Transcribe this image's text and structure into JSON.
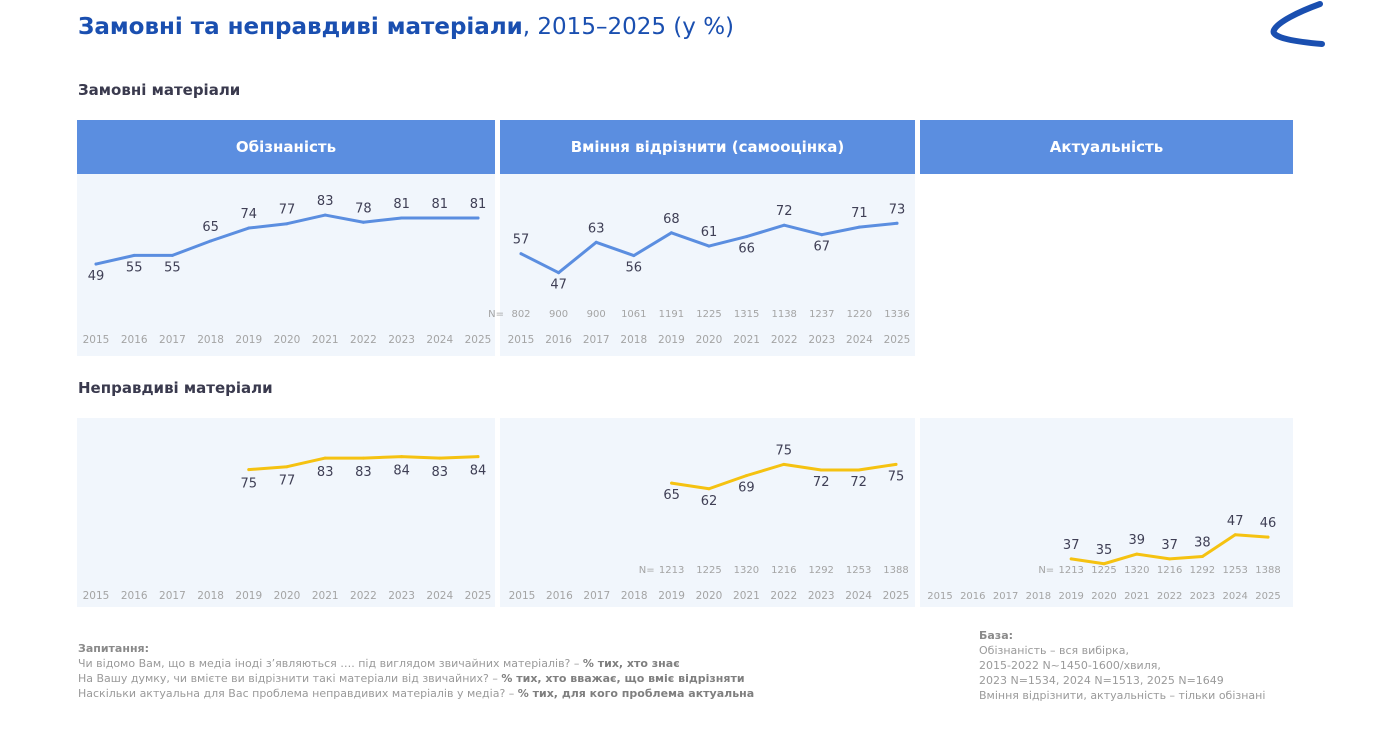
{
  "title": {
    "bold": "Замовні та неправдиві матеріали",
    "rest": ", 2015–2025 (у %)"
  },
  "sections": {
    "paid": "Замовні матеріали",
    "fake": "Неправдиві матеріали"
  },
  "columns": [
    "Обізнаність",
    "Вміння відрізнити (самооцінка)",
    "Актуальність"
  ],
  "colors": {
    "header_bg": "#5b8ee0",
    "panel_bg": "#f1f6fc",
    "paid_line": "#5b8ee0",
    "fake_line": "#f5c211",
    "title": "#1a4fb0",
    "logo": "#1a4fb0"
  },
  "n_prefix": "N=",
  "chart_data": [
    {
      "type": "line",
      "id": "paid_awareness",
      "title": "Замовні матеріали – Обізнаність",
      "x": [
        "2015",
        "2016",
        "2017",
        "2018",
        "2019",
        "2020",
        "2021",
        "2022",
        "2023",
        "2024",
        "2025"
      ],
      "values": [
        49,
        55,
        55,
        65,
        74,
        77,
        83,
        78,
        81,
        81,
        81
      ],
      "ylim": [
        40,
        90
      ],
      "n": null
    },
    {
      "type": "line",
      "id": "paid_ability",
      "title": "Замовні матеріали – Вміння відрізнити (самооцінка)",
      "x": [
        "2015",
        "2016",
        "2017",
        "2018",
        "2019",
        "2020",
        "2021",
        "2022",
        "2023",
        "2024",
        "2025"
      ],
      "values": [
        57,
        47,
        63,
        56,
        68,
        61,
        66,
        72,
        67,
        71,
        73
      ],
      "ylim": [
        40,
        80
      ],
      "n": [
        "802",
        "900",
        "900",
        "1061",
        "1191",
        "1225",
        "1315",
        "1138",
        "1237",
        "1220",
        "1336"
      ]
    },
    {
      "type": "line",
      "id": "fake_awareness",
      "title": "Неправдиві матеріали – Обізнаність",
      "x": [
        "2015",
        "2016",
        "2017",
        "2018",
        "2019",
        "2020",
        "2021",
        "2022",
        "2023",
        "2024",
        "2025"
      ],
      "values": [
        null,
        null,
        null,
        null,
        75,
        77,
        83,
        83,
        84,
        83,
        84
      ],
      "ylim": [
        40,
        90
      ],
      "n": null
    },
    {
      "type": "line",
      "id": "fake_ability",
      "title": "Неправдиві матеріали – Вміння відрізнити (самооцінка)",
      "x": [
        "2015",
        "2016",
        "2017",
        "2018",
        "2019",
        "2020",
        "2021",
        "2022",
        "2023",
        "2024",
        "2025"
      ],
      "values": [
        null,
        null,
        null,
        null,
        65,
        62,
        69,
        75,
        72,
        72,
        75
      ],
      "ylim": [
        40,
        80
      ],
      "n": [
        null,
        null,
        null,
        null,
        "1213",
        "1225",
        "1320",
        "1216",
        "1292",
        "1253",
        "1388"
      ]
    },
    {
      "type": "line",
      "id": "fake_relevance",
      "title": "Неправдиві матеріали – Актуальність",
      "x": [
        "2015",
        "2016",
        "2017",
        "2018",
        "2019",
        "2020",
        "2021",
        "2022",
        "2023",
        "2024",
        "2025"
      ],
      "values": [
        null,
        null,
        null,
        null,
        37,
        35,
        39,
        37,
        38,
        47,
        46
      ],
      "ylim": [
        20,
        80
      ],
      "n": [
        null,
        null,
        null,
        null,
        "1213",
        "1225",
        "1320",
        "1216",
        "1292",
        "1253",
        "1388"
      ]
    }
  ],
  "footer": {
    "question_header": "Запитання:",
    "questions": [
      {
        "text": "Чи відомо Вам, що в медіа іноді з’являються …. під виглядом звичайних матеріалів? – ",
        "bold": "% тих, хто знає"
      },
      {
        "text": "На Вашу думку, чи вмієте ви відрізнити такі матеріали від звичайних? – ",
        "bold": "% тих, хто вважає, що вміє відрізняти"
      },
      {
        "text": "Наскільки актуальна для Вас проблема неправдивих матеріалів у медіа? – ",
        "bold": "% тих, для кого проблема актуальна"
      }
    ],
    "base_header": "База:",
    "base_lines": [
      "Обізнаність – вся вибірка,",
      "2015-2022  N~1450-1600/хвиля,",
      "2023  N=1534, 2024 N=1513, 2025 N=1649",
      "Вміння відрізнити, актуальність – тільки обізнані"
    ]
  }
}
